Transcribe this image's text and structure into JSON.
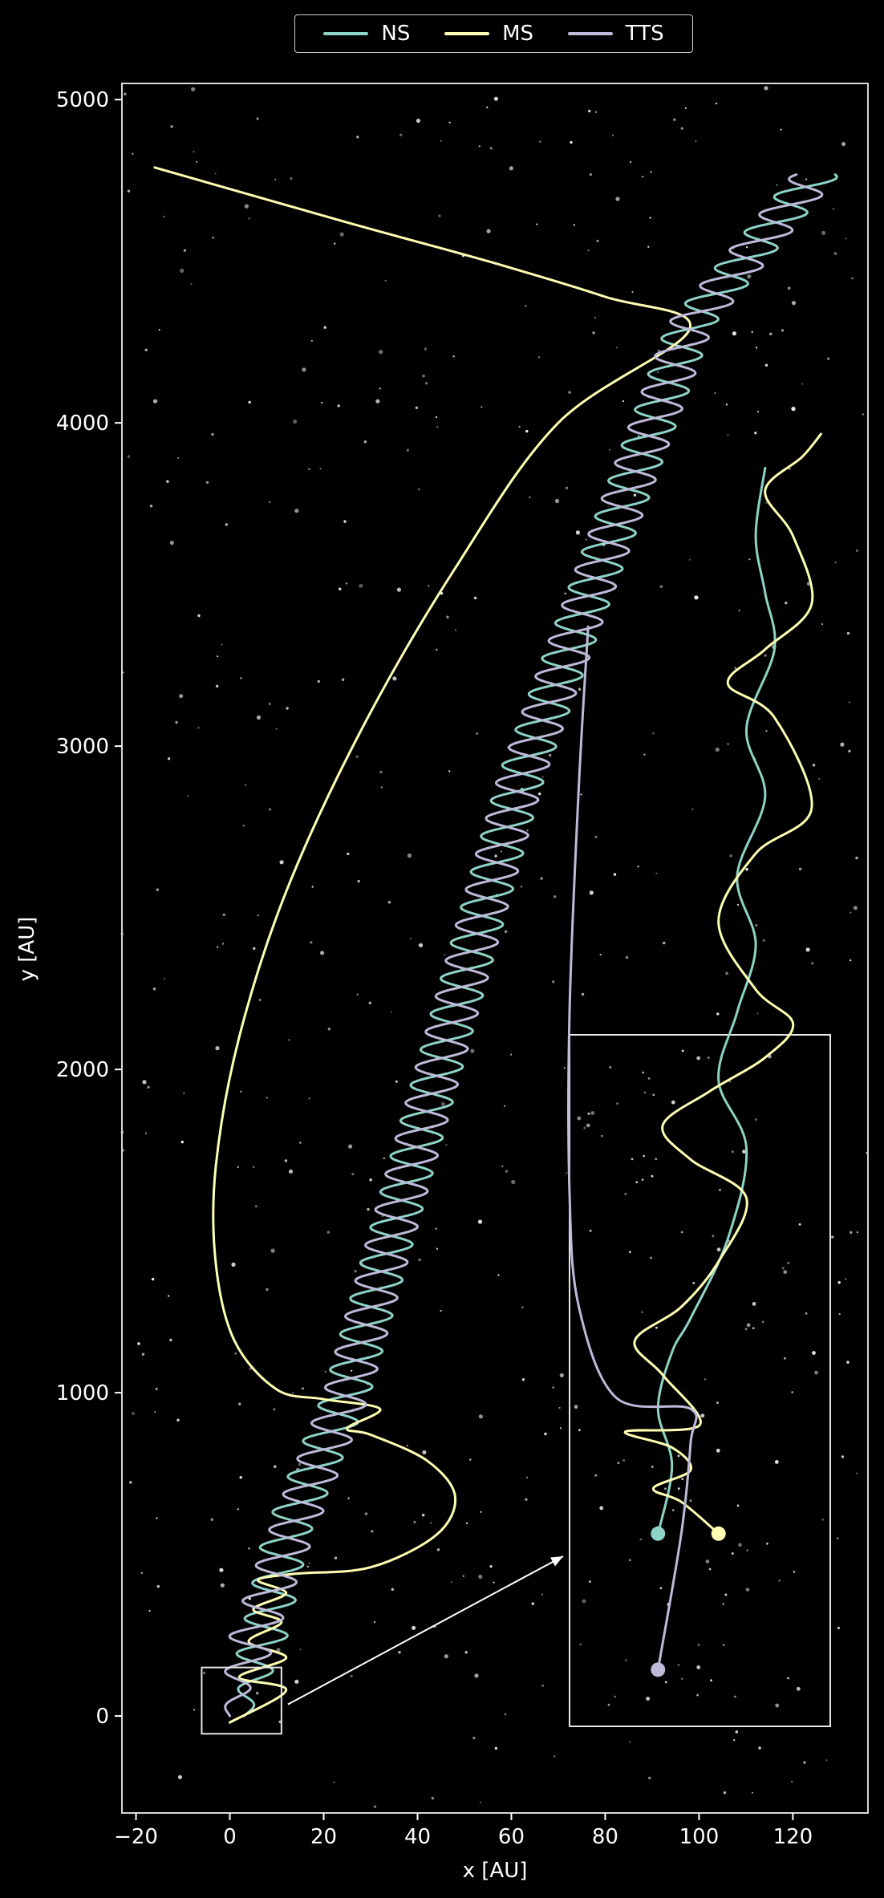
{
  "chart_data": {
    "type": "line",
    "title": "",
    "xlabel": "x [AU]",
    "ylabel": "y [AU]",
    "xlim": [
      -23,
      136
    ],
    "ylim": [
      -300,
      5050
    ],
    "xticks": [
      -20,
      0,
      20,
      40,
      60,
      80,
      100,
      120
    ],
    "yticks": [
      0,
      1000,
      2000,
      3000,
      4000,
      5000
    ],
    "xtick_labels": [
      "−20",
      "0",
      "20",
      "40",
      "60",
      "80",
      "100",
      "120"
    ],
    "ytick_labels": [
      "0",
      "1000",
      "2000",
      "3000",
      "4000",
      "5000"
    ],
    "background": "starfield",
    "grid": false,
    "legend_position": "top-center, outside",
    "series": [
      {
        "name": "NS",
        "color": "#8dd3c7",
        "anchors": [
          [
            3,
            0
          ],
          [
            8,
            290
          ],
          [
            12,
            560
          ],
          [
            25,
            1000
          ],
          [
            62,
            2900
          ],
          [
            98,
            4300
          ],
          [
            125,
            4770
          ]
        ],
        "wobble_amp": 5,
        "wobble_period": 110
      },
      {
        "name": "MS",
        "color": "#ffffb3",
        "points": [
          [
            0,
            -20
          ],
          [
            12,
            80
          ],
          [
            2,
            120
          ],
          [
            12,
            180
          ],
          [
            4,
            230
          ],
          [
            11,
            290
          ],
          [
            5,
            330
          ],
          [
            12,
            380
          ],
          [
            6,
            420
          ],
          [
            14,
            440
          ],
          [
            30,
            460
          ],
          [
            44,
            560
          ],
          [
            48,
            680
          ],
          [
            42,
            790
          ],
          [
            30,
            870
          ],
          [
            25,
            890
          ],
          [
            32,
            950
          ],
          [
            20,
            980
          ],
          [
            10,
            1010
          ],
          [
            1,
            1160
          ],
          [
            -3,
            1400
          ],
          [
            -3,
            1700
          ],
          [
            2,
            2100
          ],
          [
            12,
            2550
          ],
          [
            28,
            3050
          ],
          [
            48,
            3550
          ],
          [
            70,
            4000
          ],
          [
            98,
            4290
          ],
          [
            80,
            4390
          ],
          [
            55,
            4500
          ],
          [
            25,
            4620
          ],
          [
            -16,
            4790
          ]
        ]
      },
      {
        "name": "TTS",
        "color": "#bebada",
        "anchors": [
          [
            0,
            0
          ],
          [
            5,
            250
          ],
          [
            14,
            600
          ],
          [
            25,
            1000
          ],
          [
            62,
            2900
          ],
          [
            98,
            4300
          ],
          [
            125,
            4770
          ]
        ],
        "wobble_amp": 5,
        "wobble_period": 110,
        "wobble_phase": 3.14
      }
    ],
    "inset": {
      "source_box": {
        "xlim": [
          -6,
          11
        ],
        "ylim": [
          -55,
          150
        ]
      },
      "markers": [
        {
          "series": "NS",
          "x": 1.5,
          "y": 0,
          "color": "#8dd3c7"
        },
        {
          "series": "MS",
          "x": 8,
          "y": 0,
          "color": "#ffffb3"
        },
        {
          "series": "TTS",
          "x": 1.5,
          "y": -60,
          "color": "#bebada"
        }
      ],
      "local_xlim": [
        -8,
        20
      ],
      "local_ylim": [
        -85,
        220
      ],
      "NS": [
        [
          1.5,
          0
        ],
        [
          3,
          30
        ],
        [
          1.5,
          55
        ],
        [
          3,
          80
        ],
        [
          5,
          95
        ],
        [
          9,
          130
        ],
        [
          11,
          170
        ],
        [
          8,
          200
        ],
        [
          10,
          230
        ],
        [
          12,
          260
        ],
        [
          10,
          290
        ],
        [
          13,
          325
        ],
        [
          11,
          355
        ],
        [
          14,
          390
        ],
        [
          13,
          415
        ],
        [
          12,
          440
        ],
        [
          13,
          470
        ]
      ],
      "MS": [
        [
          8,
          0
        ],
        [
          4,
          14
        ],
        [
          1,
          20
        ],
        [
          5,
          28
        ],
        [
          3,
          38
        ],
        [
          -2,
          45
        ],
        [
          6,
          48
        ],
        [
          2,
          70
        ],
        [
          -1,
          85
        ],
        [
          4,
          100
        ],
        [
          8,
          120
        ],
        [
          11,
          148
        ],
        [
          5,
          165
        ],
        [
          2,
          180
        ],
        [
          7,
          195
        ],
        [
          13,
          210
        ],
        [
          16,
          225
        ],
        [
          12,
          240
        ],
        [
          8,
          270
        ],
        [
          12,
          300
        ],
        [
          18,
          320
        ],
        [
          14,
          360
        ],
        [
          9,
          375
        ],
        [
          13,
          390
        ],
        [
          18,
          410
        ],
        [
          16,
          440
        ],
        [
          13,
          460
        ],
        [
          17,
          475
        ],
        [
          19,
          485
        ]
      ],
      "TTS": [
        [
          1.5,
          -60
        ],
        [
          4,
          0
        ],
        [
          5,
          40
        ],
        [
          5,
          55
        ],
        [
          -3,
          60
        ],
        [
          -7,
          100
        ],
        [
          -8,
          150
        ],
        [
          -8,
          230
        ],
        [
          -7,
          330
        ],
        [
          -6,
          400
        ]
      ]
    }
  }
}
